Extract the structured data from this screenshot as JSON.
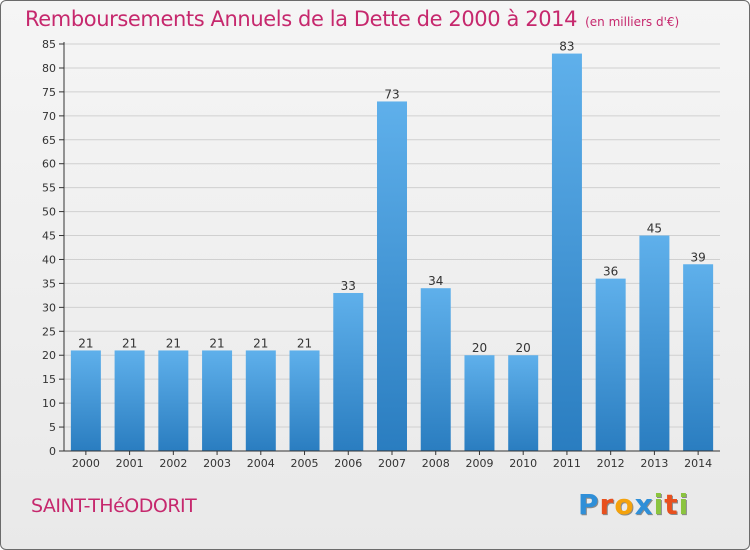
{
  "title": "Remboursements Annuels de la Dette de 2000 à 2014",
  "subtitle": "(en milliers d'€)",
  "town": "SAINT-THéODORIT",
  "brand": {
    "name": "Proxiti",
    "letters": [
      "P",
      "r",
      "o",
      "x",
      "i",
      "t",
      "i"
    ],
    "colors": [
      "#2f8fd8",
      "#e8501e",
      "#f4a20c",
      "#2f8fd8",
      "#8bc43f",
      "#e8501e",
      "#8bc43f"
    ]
  },
  "colors": {
    "accent": "#c6286d",
    "bar_top": "#5fb0eb",
    "bar_bottom": "#2a7dc0",
    "grid": "#d0d0d0",
    "axis": "#333333"
  },
  "chart_data": {
    "type": "bar",
    "categories": [
      "2000",
      "2001",
      "2002",
      "2003",
      "2004",
      "2005",
      "2006",
      "2007",
      "2008",
      "2009",
      "2010",
      "2011",
      "2012",
      "2013",
      "2014"
    ],
    "values": [
      21,
      21,
      21,
      21,
      21,
      21,
      33,
      73,
      34,
      20,
      20,
      83,
      36,
      45,
      39
    ],
    "ylim": [
      0,
      85
    ],
    "yticks": [
      0,
      5,
      10,
      15,
      20,
      25,
      30,
      35,
      40,
      45,
      50,
      55,
      60,
      65,
      70,
      75,
      80,
      85
    ],
    "grid": true,
    "data_labels": true
  }
}
